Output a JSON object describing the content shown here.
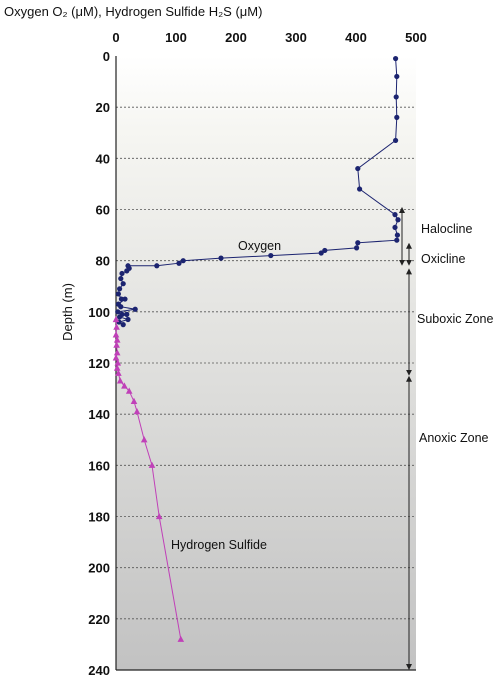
{
  "chart_data": {
    "type": "scatter",
    "title": "Oxygen O₂ (μM), Hydrogen Sulfide H₂S (μM)",
    "xlabel": "",
    "ylabel": "Depth (m)",
    "xlim": [
      0,
      500
    ],
    "ylim": [
      0,
      240
    ],
    "y_inverted": true,
    "x_axis_position": "top",
    "x_ticks": [
      "0",
      "100",
      "200",
      "300",
      "400",
      "500"
    ],
    "y_ticks": [
      "0",
      "20",
      "40",
      "60",
      "80",
      "100",
      "120",
      "140",
      "160",
      "180",
      "200",
      "220",
      "240"
    ],
    "grid": "horizontal dashed",
    "series": [
      {
        "name": "Oxygen",
        "color": "#1c2470",
        "marker": "circle",
        "points": [
          [
            466,
            1
          ],
          [
            468,
            8
          ],
          [
            467,
            16
          ],
          [
            468,
            24
          ],
          [
            466,
            33
          ],
          [
            403,
            44
          ],
          [
            406,
            52
          ],
          [
            465,
            62
          ],
          [
            470,
            64
          ],
          [
            465,
            67
          ],
          [
            469,
            70
          ],
          [
            468,
            72
          ],
          [
            403,
            73
          ],
          [
            401,
            75
          ],
          [
            348,
            76
          ],
          [
            342,
            77
          ],
          [
            258,
            78
          ],
          [
            175,
            79
          ],
          [
            112,
            80
          ],
          [
            105,
            81
          ],
          [
            68,
            82
          ],
          [
            20,
            82
          ],
          [
            22,
            83
          ],
          [
            18,
            84
          ],
          [
            10,
            85
          ],
          [
            8,
            87
          ],
          [
            12,
            89
          ],
          [
            6,
            91
          ],
          [
            4,
            93
          ],
          [
            9,
            95
          ],
          [
            15,
            95
          ],
          [
            4,
            97
          ],
          [
            8,
            98
          ],
          [
            32,
            99
          ],
          [
            3,
            100
          ],
          [
            10,
            101
          ],
          [
            18,
            101
          ],
          [
            6,
            102
          ],
          [
            20,
            103
          ],
          [
            5,
            104
          ],
          [
            12,
            105
          ]
        ]
      },
      {
        "name": "Hydrogen Sulfide",
        "color": "#c040b8",
        "marker": "triangle",
        "points": [
          [
            0,
            103
          ],
          [
            1,
            106
          ],
          [
            0,
            109
          ],
          [
            2,
            111
          ],
          [
            1,
            113
          ],
          [
            2,
            116
          ],
          [
            0,
            118
          ],
          [
            3,
            120
          ],
          [
            2,
            122
          ],
          [
            4,
            124
          ],
          [
            7,
            127
          ],
          [
            14,
            129
          ],
          [
            22,
            131
          ],
          [
            30,
            135
          ],
          [
            35,
            139
          ],
          [
            47,
            150
          ],
          [
            60,
            160
          ],
          [
            72,
            180
          ],
          [
            108,
            228
          ]
        ]
      }
    ],
    "annotations": {
      "oxygen_label": "Oxygen",
      "h2s_label": "Hydrogen Sulfide"
    },
    "zones": [
      {
        "name": "Halocline",
        "from": 59,
        "to": 82
      },
      {
        "name": "Oxicline",
        "from": 73,
        "to": 82
      },
      {
        "name": "Suboxic Zone",
        "from": 83,
        "to": 125
      },
      {
        "name": "Anoxic Zone",
        "from": 125,
        "to": 240
      }
    ]
  }
}
